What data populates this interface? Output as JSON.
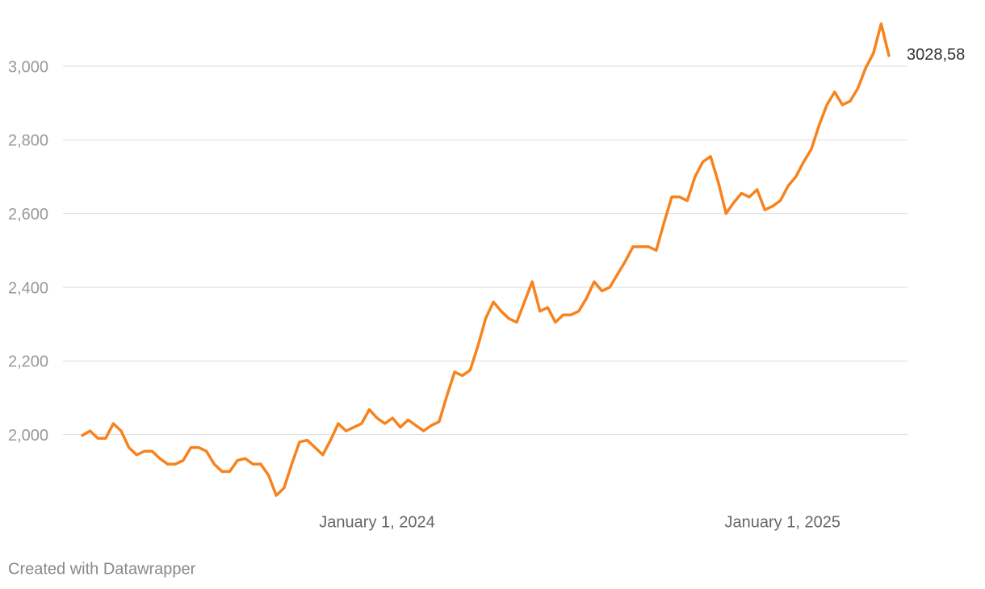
{
  "chart_data": {
    "type": "line",
    "x": [
      "2023-04-10",
      "2023-04-17",
      "2023-04-24",
      "2023-05-01",
      "2023-05-08",
      "2023-05-15",
      "2023-05-22",
      "2023-05-29",
      "2023-06-05",
      "2023-06-12",
      "2023-06-19",
      "2023-06-26",
      "2023-07-03",
      "2023-07-10",
      "2023-07-17",
      "2023-07-24",
      "2023-07-31",
      "2023-08-07",
      "2023-08-14",
      "2023-08-21",
      "2023-08-28",
      "2023-09-04",
      "2023-09-11",
      "2023-09-18",
      "2023-09-25",
      "2023-10-02",
      "2023-10-09",
      "2023-10-16",
      "2023-10-23",
      "2023-10-30",
      "2023-11-06",
      "2023-11-13",
      "2023-11-20",
      "2023-11-27",
      "2023-12-04",
      "2023-12-11",
      "2023-12-18",
      "2023-12-25",
      "2024-01-01",
      "2024-01-08",
      "2024-01-15",
      "2024-01-22",
      "2024-01-29",
      "2024-02-05",
      "2024-02-12",
      "2024-02-19",
      "2024-02-26",
      "2024-03-04",
      "2024-03-11",
      "2024-03-18",
      "2024-03-25",
      "2024-04-01",
      "2024-04-08",
      "2024-04-15",
      "2024-04-22",
      "2024-04-29",
      "2024-05-06",
      "2024-05-13",
      "2024-05-20",
      "2024-05-27",
      "2024-06-03",
      "2024-06-10",
      "2024-06-17",
      "2024-06-24",
      "2024-07-01",
      "2024-07-08",
      "2024-07-15",
      "2024-07-22",
      "2024-07-29",
      "2024-08-05",
      "2024-08-12",
      "2024-08-19",
      "2024-08-26",
      "2024-09-02",
      "2024-09-09",
      "2024-09-16",
      "2024-09-23",
      "2024-09-30",
      "2024-10-07",
      "2024-10-14",
      "2024-10-21",
      "2024-10-28",
      "2024-11-04",
      "2024-11-11",
      "2024-11-18",
      "2024-11-25",
      "2024-12-02",
      "2024-12-09",
      "2024-12-16",
      "2024-12-23",
      "2024-12-30",
      "2025-01-06",
      "2025-01-13",
      "2025-01-20",
      "2025-01-27",
      "2025-02-03",
      "2025-02-10",
      "2025-02-17",
      "2025-02-24",
      "2025-03-03",
      "2025-03-10",
      "2025-03-17",
      "2025-03-24",
      "2025-03-31",
      "2025-04-07"
    ],
    "series": [
      {
        "color": "#f7831e",
        "values": [
          1998,
          2010,
          1990,
          1990,
          2030,
          2010,
          1965,
          1945,
          1955,
          1955,
          1935,
          1920,
          1920,
          1930,
          1965,
          1965,
          1955,
          1920,
          1900,
          1900,
          1930,
          1935,
          1920,
          1920,
          1890,
          1835,
          1855,
          1920,
          1980,
          1985,
          1965,
          1945,
          1985,
          2030,
          2010,
          2020,
          2030,
          2068,
          2045,
          2030,
          2045,
          2020,
          2040,
          2025,
          2010,
          2025,
          2035,
          2105,
          2170,
          2160,
          2175,
          2240,
          2315,
          2360,
          2335,
          2315,
          2305,
          2360,
          2415,
          2335,
          2345,
          2305,
          2325,
          2325,
          2335,
          2370,
          2415,
          2390,
          2400,
          2435,
          2470,
          2510,
          2510,
          2510,
          2500,
          2575,
          2645,
          2645,
          2635,
          2700,
          2740,
          2755,
          2685,
          2600,
          2630,
          2655,
          2645,
          2665,
          2610,
          2620,
          2635,
          2675,
          2700,
          2740,
          2775,
          2840,
          2895,
          2930,
          2895,
          2905,
          2940,
          2995,
          3035,
          3115,
          3028.58
        ],
        "value_labels": [
          null,
          null,
          null,
          null,
          null,
          null,
          null,
          null,
          null,
          null,
          null,
          null,
          null,
          null,
          null,
          null,
          null,
          null,
          null,
          null,
          null,
          null,
          null,
          null,
          null,
          null,
          null,
          null,
          null,
          null,
          null,
          null,
          null,
          null,
          null,
          null,
          null,
          null,
          null,
          null,
          null,
          null,
          null,
          null,
          null,
          null,
          null,
          null,
          null,
          null,
          null,
          null,
          null,
          null,
          null,
          null,
          null,
          null,
          null,
          null,
          null,
          null,
          null,
          null,
          null,
          null,
          null,
          null,
          null,
          null,
          null,
          null,
          null,
          null,
          null,
          null,
          null,
          null,
          null,
          null,
          null,
          null,
          null,
          null,
          null,
          null,
          null,
          null,
          null,
          null,
          null,
          null,
          null,
          null,
          null,
          null,
          null,
          null,
          null,
          null,
          null,
          null,
          null,
          null,
          "3028,58"
        ]
      }
    ],
    "xlim": [
      "2023-04-10",
      "2025-04-07"
    ],
    "xticks": [
      {
        "value": "2024-01-01",
        "label": "January 1, 2024"
      },
      {
        "value": "2025-01-01",
        "label": "January 1, 2025"
      }
    ],
    "ylim": [
      1800,
      3150
    ],
    "yticks": [
      {
        "value": 2000,
        "label": "2,000"
      },
      {
        "value": 2200,
        "label": "2,200"
      },
      {
        "value": 2400,
        "label": "2,400"
      },
      {
        "value": 2600,
        "label": "2,600"
      },
      {
        "value": 2800,
        "label": "2,800"
      },
      {
        "value": 3000,
        "label": "3,000"
      }
    ],
    "grid": true,
    "credit": "Created with Datawrapper"
  }
}
